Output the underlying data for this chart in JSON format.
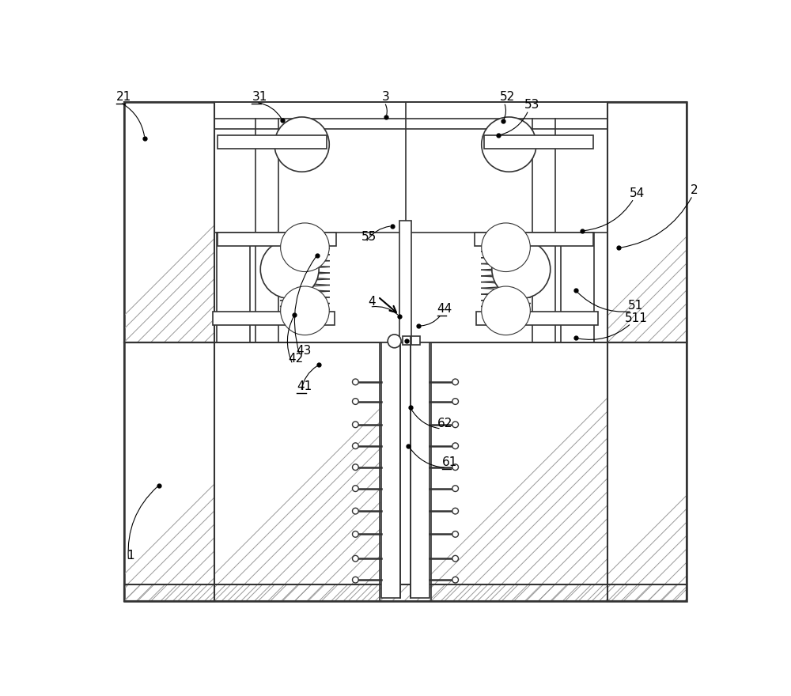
{
  "bg": "#ffffff",
  "lc": "#333333",
  "fig_w": 10.0,
  "fig_h": 8.8,
  "labels": [
    [
      "1",
      42,
      95,
      95,
      220,
      false
    ],
    [
      "2",
      968,
      695,
      850,
      610,
      false
    ],
    [
      "21",
      25,
      848,
      72,
      790,
      true
    ],
    [
      "31",
      248,
      848,
      298,
      820,
      true
    ],
    [
      "3",
      462,
      848,
      468,
      825,
      false
    ],
    [
      "52",
      655,
      848,
      660,
      818,
      false
    ],
    [
      "53",
      695,
      835,
      653,
      795,
      false
    ],
    [
      "54",
      868,
      690,
      790,
      638,
      false
    ],
    [
      "55",
      428,
      618,
      478,
      646,
      false
    ],
    [
      "4",
      438,
      512,
      490,
      498,
      false
    ],
    [
      "41",
      322,
      373,
      358,
      418,
      true
    ],
    [
      "42",
      308,
      418,
      318,
      500,
      false
    ],
    [
      "43",
      320,
      432,
      355,
      598,
      false
    ],
    [
      "44",
      552,
      500,
      522,
      482,
      true
    ],
    [
      "51",
      865,
      505,
      780,
      540,
      false
    ],
    [
      "511",
      860,
      485,
      780,
      462,
      false
    ],
    [
      "61",
      560,
      248,
      505,
      285,
      true
    ],
    [
      "62",
      552,
      312,
      508,
      348,
      false
    ]
  ]
}
